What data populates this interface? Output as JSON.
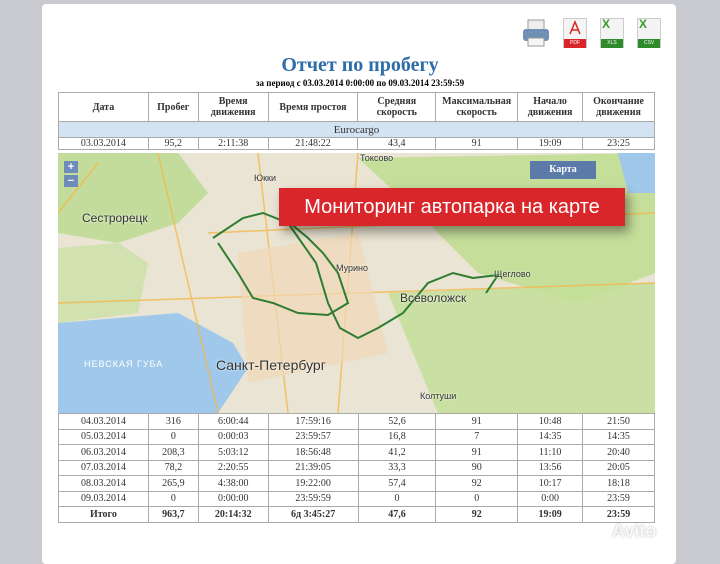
{
  "toolbar": {
    "icons": [
      "printer-icon",
      "pdf-icon",
      "xls-icon",
      "csv-icon"
    ],
    "pdf": "PDF",
    "xls": "XLS",
    "csv": "CSV"
  },
  "report": {
    "title": "Отчет по пробегу",
    "period": "за период с 03.03.2014 0:00:00 по 09.03.2014 23:59:59"
  },
  "table": {
    "headers": [
      "Дата",
      "Пробег",
      "Время движения",
      "Время простоя",
      "Средняя скорость",
      "Максимальная скорость",
      "Начало движения",
      "Окончание движения"
    ],
    "group": "Eurocargo",
    "rows": [
      [
        "03.03.2014",
        "95,2",
        "2:11:38",
        "21:48:22",
        "43,4",
        "91",
        "19:09",
        "23:25"
      ],
      [
        "04.03.2014",
        "316",
        "6:00:44",
        "17:59:16",
        "52,6",
        "91",
        "10:48",
        "21:50"
      ],
      [
        "05.03.2014",
        "0",
        "0:00:03",
        "23:59:57",
        "16,8",
        "7",
        "14:35",
        "14:35"
      ],
      [
        "06.03.2014",
        "208,3",
        "5:03:12",
        "18:56:48",
        "41,2",
        "91",
        "11:10",
        "20:40"
      ],
      [
        "07.03.2014",
        "78,2",
        "2:20:55",
        "21:39:05",
        "33,3",
        "90",
        "13:56",
        "20:05"
      ],
      [
        "08.03.2014",
        "265,9",
        "4:38:00",
        "19:22:00",
        "57,4",
        "92",
        "10:17",
        "18:18"
      ],
      [
        "09.03.2014",
        "0",
        "0:00:00",
        "23:59:59",
        "0",
        "0",
        "0:00",
        "23:59"
      ]
    ],
    "total": [
      "Итого",
      "963,7",
      "20:14:32",
      "6д 3:45:27",
      "47,6",
      "92",
      "19:09",
      "23:59"
    ]
  },
  "map": {
    "map_button": "Карта",
    "zoom_in": "+",
    "zoom_out": "−",
    "labels": {
      "sestroretsk": "Сестрорецк",
      "spb": "Санкт-Петербург",
      "vsevolozhsk": "Всеволожск",
      "bay": "НЕВСКАЯ ГУБА",
      "toksovo": "Токсово",
      "murino": "Мурино",
      "koltushi": "Колтуши",
      "yukki": "Юкки",
      "shcheglovo": "Щеглово"
    },
    "route_color": "#2e7d32"
  },
  "banner": "Мониторинг автопарка на карте",
  "watermark": "Avito"
}
